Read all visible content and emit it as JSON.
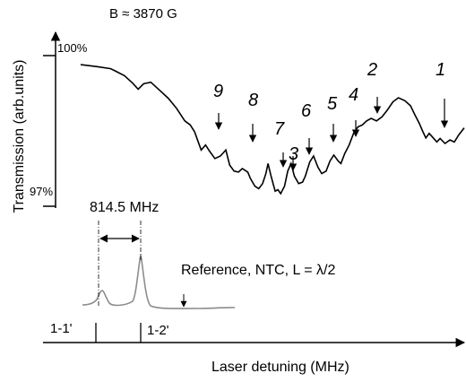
{
  "chart_data": {
    "type": "line",
    "field_label": "B ≈ 3870 G",
    "xlabel": "Laser detuning (MHz)",
    "ylabel": "Transmission (arb.units)",
    "y_ticks": [
      {
        "label": "100%",
        "value": 100
      },
      {
        "label": "97%",
        "value": 97
      }
    ],
    "ylim": [
      96.8,
      100.3
    ],
    "xlim": [
      0,
      10
    ],
    "grid": false,
    "series": [
      {
        "role": "main-spectrum",
        "color": "#000000",
        "points": [
          [
            0.0,
            99.82
          ],
          [
            0.3,
            99.78
          ],
          [
            0.55,
            99.74
          ],
          [
            0.8,
            99.6
          ],
          [
            0.95,
            99.45
          ],
          [
            1.05,
            99.33
          ],
          [
            1.15,
            99.44
          ],
          [
            1.28,
            99.47
          ],
          [
            1.45,
            99.3
          ],
          [
            1.6,
            99.15
          ],
          [
            1.75,
            98.95
          ],
          [
            1.9,
            98.7
          ],
          [
            2.0,
            98.62
          ],
          [
            2.08,
            98.48
          ],
          [
            2.14,
            98.3
          ],
          [
            2.2,
            98.12
          ],
          [
            2.28,
            98.22
          ],
          [
            2.35,
            98.1
          ],
          [
            2.45,
            97.95
          ],
          [
            2.55,
            98.0
          ],
          [
            2.65,
            98.12
          ],
          [
            2.72,
            97.82
          ],
          [
            2.8,
            97.7
          ],
          [
            2.88,
            97.68
          ],
          [
            2.95,
            97.75
          ],
          [
            3.05,
            97.68
          ],
          [
            3.1,
            97.55
          ],
          [
            3.18,
            97.4
          ],
          [
            3.25,
            97.35
          ],
          [
            3.32,
            97.45
          ],
          [
            3.38,
            97.65
          ],
          [
            3.42,
            97.85
          ],
          [
            3.47,
            97.62
          ],
          [
            3.52,
            97.42
          ],
          [
            3.55,
            97.3
          ],
          [
            3.6,
            97.33
          ],
          [
            3.65,
            97.25
          ],
          [
            3.72,
            97.4
          ],
          [
            3.78,
            97.7
          ],
          [
            3.84,
            97.85
          ],
          [
            3.9,
            97.6
          ],
          [
            3.98,
            97.45
          ],
          [
            4.05,
            97.48
          ],
          [
            4.1,
            97.6
          ],
          [
            4.18,
            97.88
          ],
          [
            4.25,
            98.0
          ],
          [
            4.33,
            97.78
          ],
          [
            4.4,
            97.65
          ],
          [
            4.48,
            97.7
          ],
          [
            4.55,
            97.9
          ],
          [
            4.62,
            98.02
          ],
          [
            4.7,
            97.9
          ],
          [
            4.75,
            97.85
          ],
          [
            4.82,
            98.05
          ],
          [
            4.9,
            98.22
          ],
          [
            4.98,
            98.45
          ],
          [
            5.06,
            98.58
          ],
          [
            5.14,
            98.62
          ],
          [
            5.22,
            98.7
          ],
          [
            5.3,
            98.75
          ],
          [
            5.4,
            98.7
          ],
          [
            5.5,
            98.78
          ],
          [
            5.6,
            98.92
          ],
          [
            5.7,
            99.08
          ],
          [
            5.8,
            99.16
          ],
          [
            5.92,
            99.1
          ],
          [
            6.02,
            99.0
          ],
          [
            6.1,
            98.82
          ],
          [
            6.18,
            98.65
          ],
          [
            6.24,
            98.5
          ],
          [
            6.3,
            98.36
          ],
          [
            6.36,
            98.45
          ],
          [
            6.42,
            98.38
          ],
          [
            6.5,
            98.28
          ],
          [
            6.56,
            98.35
          ],
          [
            6.65,
            98.25
          ],
          [
            6.74,
            98.32
          ],
          [
            6.82,
            98.28
          ],
          [
            6.9,
            98.42
          ],
          [
            7.0,
            98.56
          ]
        ]
      },
      {
        "role": "reference",
        "label": "Reference, NTC, L = λ/2",
        "color": "#808080"
      }
    ],
    "peak_labels": [
      {
        "label": "1",
        "x": 6.3
      },
      {
        "label": "2",
        "x": 5.0
      },
      {
        "label": "3",
        "x": 3.45
      },
      {
        "label": "4",
        "x": 4.7
      },
      {
        "label": "5",
        "x": 4.36
      },
      {
        "label": "6",
        "x": 3.83
      },
      {
        "label": "7",
        "x": 3.18
      },
      {
        "label": "8",
        "x": 2.72
      },
      {
        "label": "9",
        "x": 2.2
      }
    ],
    "reference_markers": [
      {
        "label": "1-1'",
        "x": 0.6
      },
      {
        "label": "1-2'",
        "x": 1.88
      }
    ],
    "spacing_label": "814.5 MHz"
  }
}
